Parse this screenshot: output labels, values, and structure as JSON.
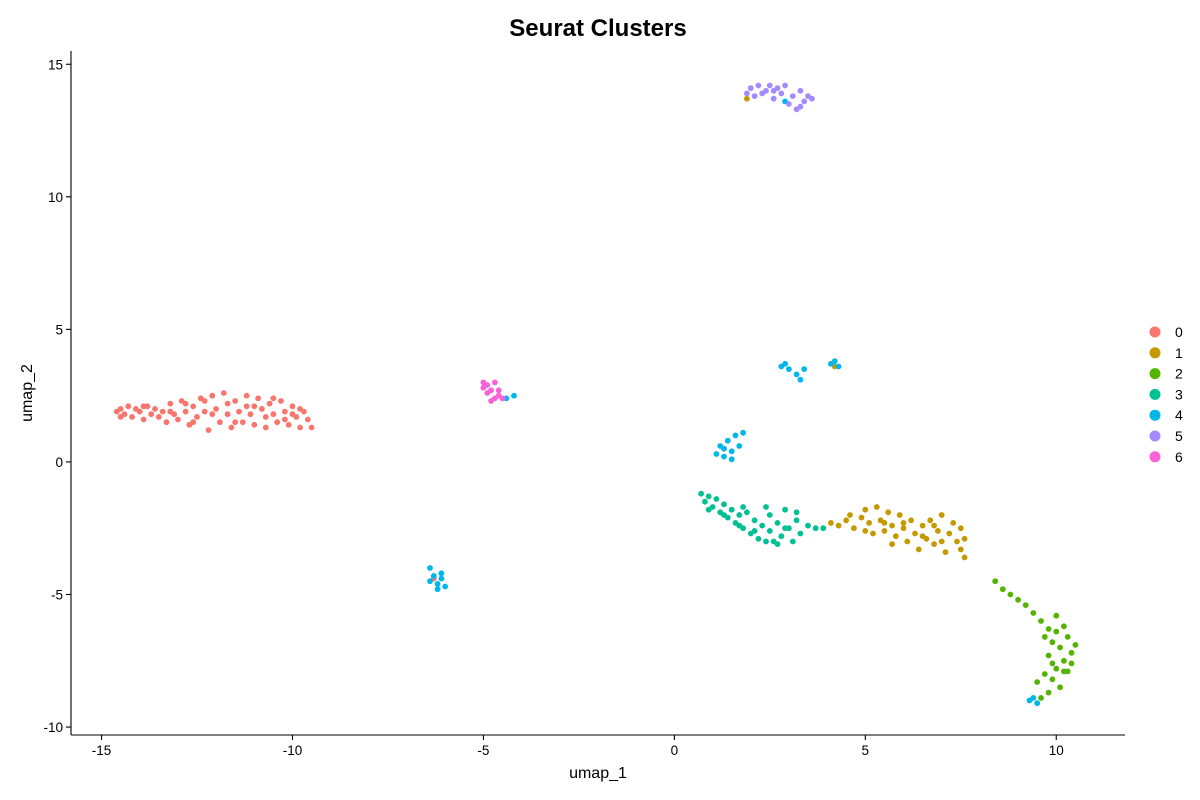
{
  "chart_data": {
    "type": "scatter",
    "title": "Seurat Clusters",
    "xlabel": "umap_1",
    "ylabel": "umap_2",
    "xlim": [
      -15.8,
      11.8
    ],
    "ylim": [
      -10.3,
      15.5
    ],
    "xticks": [
      -15,
      -10,
      -5,
      0,
      5,
      10
    ],
    "yticks": [
      -10,
      -5,
      0,
      5,
      10,
      15
    ],
    "grid": false,
    "legend_position": "right",
    "legend": [
      {
        "label": "0",
        "color": "#F8766D"
      },
      {
        "label": "1",
        "color": "#C49A00"
      },
      {
        "label": "2",
        "color": "#53B400"
      },
      {
        "label": "3",
        "color": "#00C094"
      },
      {
        "label": "4",
        "color": "#00B6EB"
      },
      {
        "label": "5",
        "color": "#A58AFF"
      },
      {
        "label": "6",
        "color": "#FB61D7"
      }
    ],
    "series": [
      {
        "cluster": "0",
        "color": "#F8766D",
        "points": [
          [
            -14.6,
            1.9
          ],
          [
            -14.5,
            2.0
          ],
          [
            -14.4,
            1.8
          ],
          [
            -14.3,
            2.1
          ],
          [
            -14.2,
            1.7
          ],
          [
            -14.1,
            2.0
          ],
          [
            -14.0,
            1.9
          ],
          [
            -13.9,
            1.6
          ],
          [
            -13.8,
            2.1
          ],
          [
            -13.7,
            1.8
          ],
          [
            -13.6,
            2.0
          ],
          [
            -13.5,
            1.7
          ],
          [
            -13.4,
            1.9
          ],
          [
            -13.3,
            1.5
          ],
          [
            -13.2,
            2.2
          ],
          [
            -13.1,
            1.8
          ],
          [
            -13.0,
            1.6
          ],
          [
            -12.9,
            2.3
          ],
          [
            -12.8,
            1.9
          ],
          [
            -12.7,
            1.4
          ],
          [
            -12.6,
            2.1
          ],
          [
            -12.5,
            1.7
          ],
          [
            -12.4,
            2.4
          ],
          [
            -12.3,
            1.9
          ],
          [
            -12.2,
            1.2
          ],
          [
            -12.1,
            2.5
          ],
          [
            -12.0,
            2.0
          ],
          [
            -11.9,
            1.5
          ],
          [
            -11.8,
            2.6
          ],
          [
            -11.7,
            1.8
          ],
          [
            -11.6,
            1.3
          ],
          [
            -11.5,
            2.3
          ],
          [
            -11.4,
            1.9
          ],
          [
            -11.3,
            1.5
          ],
          [
            -11.2,
            2.5
          ],
          [
            -11.1,
            1.8
          ],
          [
            -11.0,
            1.4
          ],
          [
            -10.9,
            2.4
          ],
          [
            -10.8,
            2.0
          ],
          [
            -10.7,
            1.3
          ],
          [
            -10.6,
            2.2
          ],
          [
            -10.5,
            1.8
          ],
          [
            -10.4,
            1.5
          ],
          [
            -10.3,
            2.3
          ],
          [
            -10.2,
            1.9
          ],
          [
            -10.1,
            1.4
          ],
          [
            -10.0,
            2.1
          ],
          [
            -9.9,
            1.7
          ],
          [
            -9.8,
            1.3
          ],
          [
            -9.7,
            1.9
          ],
          [
            -9.6,
            1.6
          ],
          [
            -14.5,
            1.7
          ],
          [
            -13.9,
            2.1
          ],
          [
            -13.2,
            1.9
          ],
          [
            -12.6,
            1.5
          ],
          [
            -12.1,
            1.8
          ],
          [
            -11.5,
            1.5
          ],
          [
            -11.0,
            2.1
          ],
          [
            -10.5,
            2.4
          ],
          [
            -10.0,
            1.8
          ],
          [
            -12.8,
            2.2
          ],
          [
            -12.3,
            2.3
          ],
          [
            -11.7,
            2.2
          ],
          [
            -11.2,
            2.1
          ],
          [
            -10.7,
            1.7
          ],
          [
            -10.2,
            1.6
          ],
          [
            -9.8,
            2.0
          ],
          [
            -9.5,
            1.3
          ]
        ]
      },
      {
        "cluster": "0",
        "color": "#F8766D",
        "points": [
          [
            -6.3,
            -4.4
          ]
        ]
      },
      {
        "cluster": "1",
        "color": "#C49A00",
        "points": [
          [
            4.1,
            -2.3
          ],
          [
            4.3,
            -2.4
          ],
          [
            4.5,
            -2.2
          ],
          [
            4.7,
            -2.5
          ],
          [
            4.9,
            -2.1
          ],
          [
            5.0,
            -1.8
          ],
          [
            5.1,
            -2.3
          ],
          [
            5.2,
            -2.7
          ],
          [
            5.3,
            -1.7
          ],
          [
            5.4,
            -2.2
          ],
          [
            5.5,
            -2.6
          ],
          [
            5.6,
            -1.9
          ],
          [
            5.7,
            -2.4
          ],
          [
            5.8,
            -2.8
          ],
          [
            5.9,
            -2.0
          ],
          [
            6.0,
            -2.5
          ],
          [
            6.1,
            -3.0
          ],
          [
            6.2,
            -2.2
          ],
          [
            6.3,
            -2.7
          ],
          [
            6.4,
            -3.3
          ],
          [
            6.5,
            -2.4
          ],
          [
            6.6,
            -2.9
          ],
          [
            6.7,
            -2.2
          ],
          [
            6.8,
            -3.1
          ],
          [
            6.9,
            -2.6
          ],
          [
            7.0,
            -2.0
          ],
          [
            7.1,
            -3.4
          ],
          [
            7.2,
            -2.7
          ],
          [
            7.3,
            -2.3
          ],
          [
            7.4,
            -3.0
          ],
          [
            7.5,
            -2.5
          ],
          [
            7.6,
            -3.6
          ],
          [
            7.6,
            -2.9
          ],
          [
            7.5,
            -3.3
          ],
          [
            7.0,
            -3.0
          ],
          [
            6.5,
            -2.8
          ],
          [
            6.0,
            -2.3
          ],
          [
            5.5,
            -2.3
          ],
          [
            5.0,
            -2.6
          ],
          [
            4.6,
            -2.0
          ],
          [
            4.2,
            3.6
          ],
          [
            1.9,
            13.7
          ],
          [
            6.8,
            -2.4
          ],
          [
            5.7,
            -3.1
          ]
        ]
      },
      {
        "cluster": "2",
        "color": "#53B400",
        "points": [
          [
            8.4,
            -4.5
          ],
          [
            8.6,
            -4.8
          ],
          [
            8.8,
            -5.0
          ],
          [
            9.0,
            -5.2
          ],
          [
            9.2,
            -5.4
          ],
          [
            9.4,
            -5.7
          ],
          [
            9.6,
            -6.0
          ],
          [
            9.8,
            -6.3
          ],
          [
            10.0,
            -5.8
          ],
          [
            10.2,
            -6.2
          ],
          [
            9.9,
            -6.8
          ],
          [
            10.1,
            -7.0
          ],
          [
            10.3,
            -6.6
          ],
          [
            10.4,
            -7.2
          ],
          [
            10.2,
            -7.5
          ],
          [
            10.0,
            -7.8
          ],
          [
            9.8,
            -7.3
          ],
          [
            9.7,
            -8.0
          ],
          [
            9.9,
            -8.2
          ],
          [
            10.1,
            -8.5
          ],
          [
            9.8,
            -8.7
          ],
          [
            9.6,
            -8.9
          ],
          [
            9.5,
            -8.3
          ],
          [
            10.2,
            -7.9
          ],
          [
            10.4,
            -7.6
          ],
          [
            10.5,
            -6.9
          ],
          [
            9.7,
            -6.6
          ],
          [
            9.9,
            -7.6
          ],
          [
            10.0,
            -6.4
          ],
          [
            10.3,
            -7.9
          ]
        ]
      },
      {
        "cluster": "3",
        "color": "#00C094",
        "points": [
          [
            0.7,
            -1.2
          ],
          [
            0.8,
            -1.5
          ],
          [
            0.9,
            -1.3
          ],
          [
            1.0,
            -1.7
          ],
          [
            1.1,
            -1.4
          ],
          [
            1.2,
            -1.9
          ],
          [
            1.3,
            -1.6
          ],
          [
            1.4,
            -2.1
          ],
          [
            1.5,
            -1.8
          ],
          [
            1.6,
            -2.3
          ],
          [
            1.7,
            -2.0
          ],
          [
            1.8,
            -2.5
          ],
          [
            1.9,
            -1.9
          ],
          [
            2.0,
            -2.7
          ],
          [
            2.1,
            -2.2
          ],
          [
            2.2,
            -2.9
          ],
          [
            2.3,
            -2.4
          ],
          [
            2.4,
            -1.7
          ],
          [
            2.5,
            -2.6
          ],
          [
            2.6,
            -3.0
          ],
          [
            2.7,
            -2.3
          ],
          [
            2.8,
            -2.8
          ],
          [
            2.9,
            -1.8
          ],
          [
            3.0,
            -2.5
          ],
          [
            3.1,
            -3.0
          ],
          [
            3.2,
            -2.2
          ],
          [
            3.3,
            -2.7
          ],
          [
            3.5,
            -2.4
          ],
          [
            3.7,
            -2.5
          ],
          [
            3.9,
            -2.5
          ],
          [
            0.9,
            -1.8
          ],
          [
            1.3,
            -2.0
          ],
          [
            1.7,
            -2.4
          ],
          [
            2.1,
            -2.6
          ],
          [
            2.5,
            -2.0
          ],
          [
            2.9,
            -2.5
          ],
          [
            3.2,
            -1.9
          ],
          [
            2.4,
            -3.0
          ],
          [
            1.8,
            -1.7
          ],
          [
            2.7,
            -3.1
          ]
        ]
      },
      {
        "cluster": "4",
        "color": "#00B6EB",
        "points": [
          [
            1.1,
            0.3
          ],
          [
            1.2,
            0.6
          ],
          [
            1.3,
            0.2
          ],
          [
            1.4,
            0.8
          ],
          [
            1.5,
            0.4
          ],
          [
            1.6,
            1.0
          ],
          [
            1.7,
            0.6
          ],
          [
            1.8,
            1.1
          ],
          [
            1.5,
            0.1
          ],
          [
            1.3,
            0.5
          ],
          [
            2.8,
            3.6
          ],
          [
            3.0,
            3.5
          ],
          [
            3.2,
            3.3
          ],
          [
            3.4,
            3.5
          ],
          [
            3.3,
            3.1
          ],
          [
            2.9,
            3.7
          ],
          [
            4.1,
            3.7
          ],
          [
            4.2,
            3.8
          ],
          [
            4.3,
            3.6
          ],
          [
            -6.4,
            -4.0
          ],
          [
            -6.3,
            -4.3
          ],
          [
            -6.2,
            -4.6
          ],
          [
            -6.1,
            -4.4
          ],
          [
            -6.0,
            -4.7
          ],
          [
            -6.2,
            -4.8
          ],
          [
            -6.4,
            -4.5
          ],
          [
            -6.1,
            -4.2
          ],
          [
            -4.2,
            2.5
          ],
          [
            -4.4,
            2.4
          ],
          [
            2.9,
            13.6
          ],
          [
            9.4,
            -8.9
          ],
          [
            9.5,
            -9.1
          ],
          [
            9.3,
            -9.0
          ]
        ]
      },
      {
        "cluster": "5",
        "color": "#A58AFF",
        "points": [
          [
            1.9,
            13.9
          ],
          [
            2.0,
            14.1
          ],
          [
            2.1,
            13.8
          ],
          [
            2.2,
            14.2
          ],
          [
            2.3,
            13.9
          ],
          [
            2.4,
            14.0
          ],
          [
            2.5,
            14.2
          ],
          [
            2.6,
            13.7
          ],
          [
            2.7,
            14.1
          ],
          [
            2.8,
            13.9
          ],
          [
            2.9,
            14.2
          ],
          [
            3.0,
            13.5
          ],
          [
            3.1,
            13.8
          ],
          [
            3.2,
            13.3
          ],
          [
            3.3,
            14.0
          ],
          [
            3.4,
            13.6
          ],
          [
            3.5,
            13.8
          ],
          [
            3.6,
            13.7
          ],
          [
            3.3,
            13.4
          ],
          [
            2.6,
            14.0
          ]
        ]
      },
      {
        "cluster": "6",
        "color": "#FB61D7",
        "points": [
          [
            -5.0,
            3.0
          ],
          [
            -4.9,
            2.9
          ],
          [
            -4.8,
            2.7
          ],
          [
            -4.9,
            2.6
          ],
          [
            -4.7,
            2.4
          ],
          [
            -4.6,
            2.5
          ],
          [
            -4.8,
            2.3
          ],
          [
            -4.5,
            2.4
          ],
          [
            -5.0,
            2.8
          ],
          [
            -4.7,
            3.0
          ],
          [
            -4.6,
            2.7
          ]
        ]
      }
    ]
  }
}
